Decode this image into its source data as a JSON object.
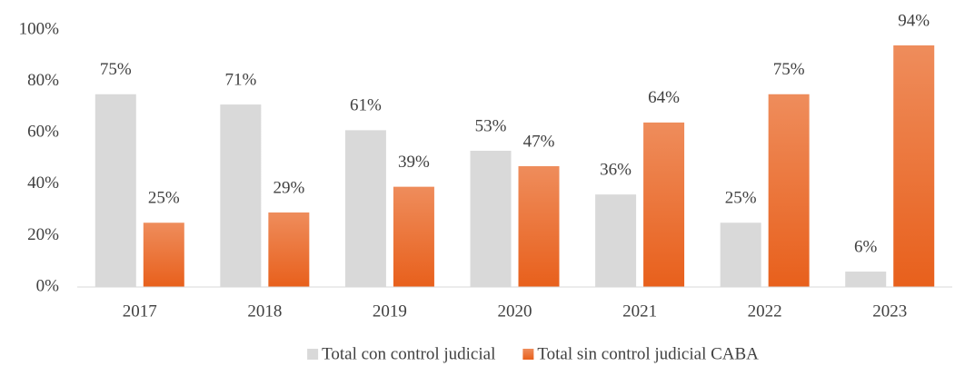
{
  "chart_data": {
    "type": "bar",
    "categories": [
      "2017",
      "2018",
      "2019",
      "2020",
      "2021",
      "2022",
      "2023"
    ],
    "series": [
      {
        "name": "Total con control judicial",
        "color": "#d9d9d9",
        "values": [
          75,
          71,
          61,
          53,
          36,
          25,
          6
        ],
        "value_labels": [
          "75%",
          "71%",
          "61%",
          "53%",
          "36%",
          "25%",
          "6%"
        ]
      },
      {
        "name": "Total sin control judicial CABA",
        "color": "#e8601c",
        "values": [
          25,
          29,
          39,
          47,
          64,
          75,
          94
        ],
        "value_labels": [
          "25%",
          "29%",
          "39%",
          "47%",
          "64%",
          "75%",
          "94%"
        ]
      }
    ],
    "ylim": [
      0,
      100
    ],
    "yticks": [
      {
        "value": 0,
        "label": "0%"
      },
      {
        "value": 20,
        "label": "20%"
      },
      {
        "value": 40,
        "label": "40%"
      },
      {
        "value": 60,
        "label": "60%"
      },
      {
        "value": 80,
        "label": "80%"
      },
      {
        "value": 100,
        "label": "100%"
      }
    ],
    "grid": false,
    "legend": "bottom"
  }
}
